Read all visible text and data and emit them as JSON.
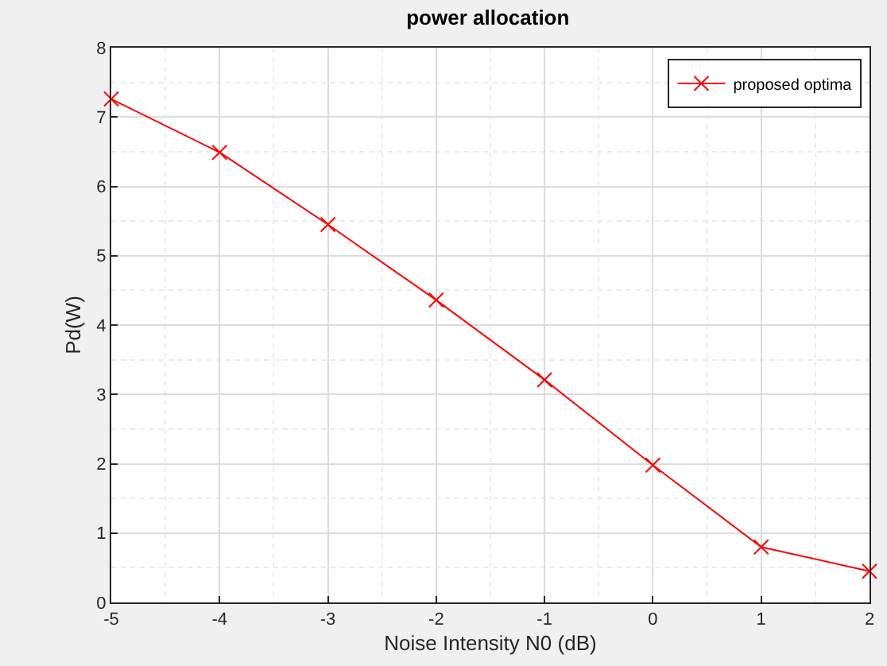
{
  "chart_data": {
    "type": "line",
    "title": "power allocation",
    "xlabel": "Noise Intensity N0 (dB)",
    "ylabel": "Pd(W)",
    "x": [
      -5,
      -4,
      -3,
      -2,
      -1,
      0,
      1,
      2
    ],
    "series": [
      {
        "name": "proposed optima",
        "color": "#ff0000",
        "values": [
          7.26,
          6.49,
          5.45,
          4.36,
          3.21,
          1.98,
          0.8,
          0.45
        ]
      }
    ],
    "xlim": [
      -5,
      2
    ],
    "xticks": [
      -5,
      -4,
      -3,
      -2,
      -1,
      0,
      1,
      2
    ],
    "ylim": [
      0,
      8
    ],
    "yticks": [
      0,
      1,
      2,
      3,
      4,
      5,
      6,
      7,
      8
    ],
    "grid": true,
    "legend": "top right",
    "marker": "cross",
    "line_style": "solid"
  }
}
